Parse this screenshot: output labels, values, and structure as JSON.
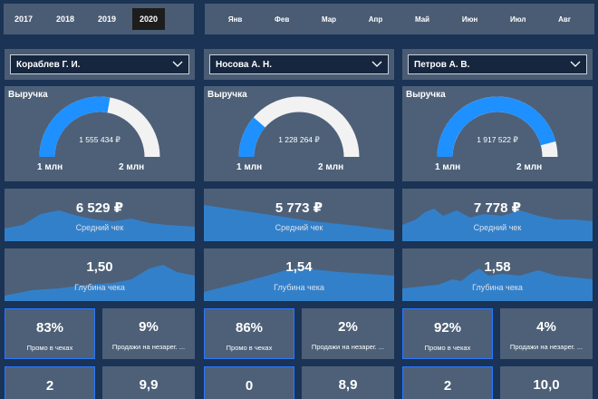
{
  "years": [
    {
      "label": "2017",
      "active": false
    },
    {
      "label": "2018",
      "active": false
    },
    {
      "label": "2019",
      "active": false
    },
    {
      "label": "2020",
      "active": true
    }
  ],
  "months": [
    "Янв",
    "Фев",
    "Мар",
    "Апр",
    "Май",
    "Июн",
    "Июл",
    "Авг"
  ],
  "columns": [
    {
      "manager": "Кораблев Г. И.",
      "revenue_title": "Выручка",
      "revenue_value": "1 555 434 ₽",
      "gauge_fill": 0.555,
      "gauge_min": "1 млн",
      "gauge_max": "2 млн",
      "avg_check_value": "6 529 ₽",
      "avg_check_label": "Средний чек",
      "depth_value": "1,50",
      "depth_label": "Глубина чека",
      "promo_value": "83%",
      "promo_label": "Промо в чеках",
      "unreg_value": "9%",
      "unreg_label": "Продажи на незарег. ...",
      "bottom_left": "2",
      "bottom_right": "9,9"
    },
    {
      "manager": "Носова А. Н.",
      "revenue_title": "Выручка",
      "revenue_value": "1 228 264 ₽",
      "gauge_fill": 0.228,
      "gauge_min": "1 млн",
      "gauge_max": "2 млн",
      "avg_check_value": "5 773 ₽",
      "avg_check_label": "Средний чек",
      "depth_value": "1,54",
      "depth_label": "Глубина чека",
      "promo_value": "86%",
      "promo_label": "Промо в чеках",
      "unreg_value": "2%",
      "unreg_label": "Продажи на незарег. ...",
      "bottom_left": "0",
      "bottom_right": "8,9"
    },
    {
      "manager": "Петров А. В.",
      "revenue_title": "Выручка",
      "revenue_value": "1 917 522 ₽",
      "gauge_fill": 0.917,
      "gauge_min": "1 млн",
      "gauge_max": "2 млн",
      "avg_check_value": "7 778 ₽",
      "avg_check_label": "Средний чек",
      "depth_value": "1,58",
      "depth_label": "Глубина чека",
      "promo_value": "92%",
      "promo_label": "Промо в чеках",
      "unreg_value": "4%",
      "unreg_label": "Продажи на незарег. ...",
      "bottom_left": "2",
      "bottom_right": "10,0"
    }
  ],
  "colors": {
    "background": "#1b3354",
    "panel": "#4d6078",
    "gauge_fill": "#1e90ff",
    "gauge_track": "#f2f2f2",
    "area": "#2f86d8",
    "accent_border": "#2979ff"
  },
  "icons": [
    "chevron-down-icon"
  ]
}
